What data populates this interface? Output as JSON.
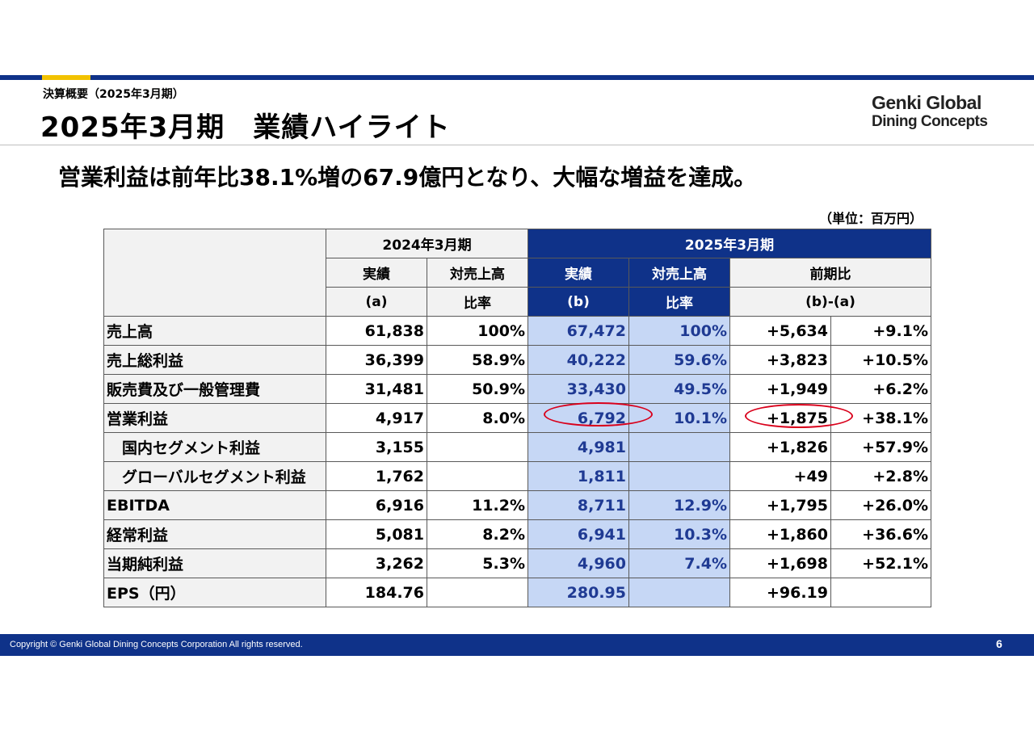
{
  "header": {
    "breadcrumb": "決算概要（2025年3月期）",
    "title": "2025年3月期　業績ハイライト",
    "logo_line1": "Genki Global",
    "logo_line2": "Dining Concepts"
  },
  "headline": "営業利益は前年比38.1%増の67.9億円となり、大幅な増益を達成。",
  "unit": "（単位：百万円）",
  "table": {
    "group_prev": "2024年3月期",
    "group_curr": "2025年3月期",
    "col_actual": "実績",
    "col_ratio_1": "対売上高",
    "col_ratio_2": "比率",
    "col_a": "(a)",
    "col_b": "(b)",
    "col_yoy": "前期比",
    "col_diff": "(b)-(a)",
    "rows": [
      {
        "label": "売上高",
        "prev": "61,838",
        "prev_ratio": "100%",
        "curr": "67,472",
        "curr_ratio": "100%",
        "diff": "+5,634",
        "pct": "+9.1%"
      },
      {
        "label": "売上総利益",
        "prev": "36,399",
        "prev_ratio": "58.9%",
        "curr": "40,222",
        "curr_ratio": "59.6%",
        "diff": "+3,823",
        "pct": "+10.5%"
      },
      {
        "label": "販売費及び一般管理費",
        "prev": "31,481",
        "prev_ratio": "50.9%",
        "curr": "33,430",
        "curr_ratio": "49.5%",
        "diff": "+1,949",
        "pct": "+6.2%"
      },
      {
        "label": "営業利益",
        "prev": "4,917",
        "prev_ratio": "8.0%",
        "curr": "6,792",
        "curr_ratio": "10.1%",
        "diff": "+1,875",
        "pct": "+38.1%"
      },
      {
        "label": "国内セグメント利益",
        "prev": "3,155",
        "prev_ratio": "",
        "curr": "4,981",
        "curr_ratio": "",
        "diff": "+1,826",
        "pct": "+57.9%"
      },
      {
        "label": "グローバルセグメント利益",
        "prev": "1,762",
        "prev_ratio": "",
        "curr": "1,811",
        "curr_ratio": "",
        "diff": "+49",
        "pct": "+2.8%"
      },
      {
        "label": "EBITDA",
        "prev": "6,916",
        "prev_ratio": "11.2%",
        "curr": "8,711",
        "curr_ratio": "12.9%",
        "diff": "+1,795",
        "pct": "+26.0%"
      },
      {
        "label": "経常利益",
        "prev": "5,081",
        "prev_ratio": "8.2%",
        "curr": "6,941",
        "curr_ratio": "10.3%",
        "diff": "+1,860",
        "pct": "+36.6%"
      },
      {
        "label": "当期純利益",
        "prev": "3,262",
        "prev_ratio": "5.3%",
        "curr": "4,960",
        "curr_ratio": "7.4%",
        "diff": "+1,698",
        "pct": "+52.1%"
      },
      {
        "label": "EPS（円）",
        "prev": "184.76",
        "prev_ratio": "",
        "curr": "280.95",
        "curr_ratio": "",
        "diff": "+96.19",
        "pct": ""
      }
    ]
  },
  "footer": {
    "copyright": "Copyright © Genki Global Dining Concepts Corporation All rights reserved.",
    "page_number": "6"
  },
  "colors": {
    "navy": "#0f3289",
    "accent_yellow": "#f2c200",
    "highlight_blue": "#c6d7f5",
    "circle_red": "#d9001b"
  }
}
